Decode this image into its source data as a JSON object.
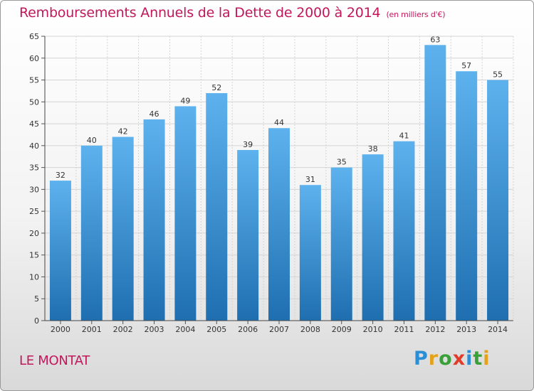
{
  "chart_data": {
    "type": "bar",
    "title": "Remboursements Annuels de la Dette de 2000 à 2014",
    "subtitle": "(en milliers d'€)",
    "categories": [
      "2000",
      "2001",
      "2002",
      "2003",
      "2004",
      "2005",
      "2006",
      "2007",
      "2008",
      "2009",
      "2010",
      "2011",
      "2012",
      "2013",
      "2014"
    ],
    "values": [
      32,
      40,
      42,
      46,
      49,
      52,
      39,
      44,
      31,
      35,
      38,
      41,
      63,
      57,
      55
    ],
    "ylim": [
      0,
      65
    ],
    "yticks": [
      0,
      5,
      10,
      15,
      20,
      25,
      30,
      35,
      40,
      45,
      50,
      55,
      60,
      65
    ],
    "xlabel": "",
    "ylabel": "",
    "grid": true
  },
  "footer": {
    "commune": "LE MONTAT",
    "logo": "Proxiti"
  },
  "colors": {
    "title": "#c2185b",
    "bar_top": "#5db2ee",
    "bar_bottom": "#1f6fb0",
    "grid": "#d4d4d4"
  }
}
